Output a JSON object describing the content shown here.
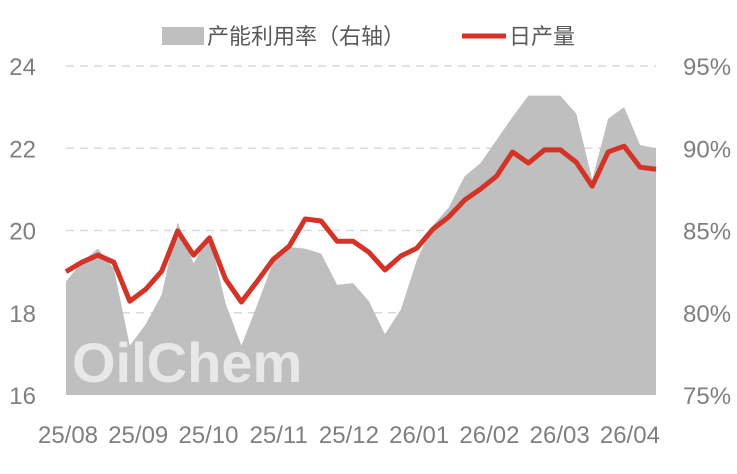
{
  "chart_data": {
    "type": "line+area",
    "legend": {
      "placement": "top",
      "entries": [
        "产能利用率（右轴）",
        "日产量"
      ]
    },
    "x_tick_labels": [
      "25/08",
      "25/09",
      "25/10",
      "25/11",
      "25/12",
      "26/01",
      "26/02",
      "26/03",
      "26/04"
    ],
    "left_axis": {
      "range": [
        16,
        24
      ],
      "ticks": [
        16,
        18,
        20,
        22,
        24
      ],
      "tick_labels": [
        "16",
        "18",
        "20",
        "22",
        "24"
      ]
    },
    "right_axis": {
      "range": [
        75,
        95
      ],
      "ticks": [
        75,
        80,
        85,
        90,
        95
      ],
      "tick_labels": [
        "75%",
        "80%",
        "85%",
        "90%",
        "95%"
      ]
    },
    "grid": "horizontal dashed",
    "series": [
      {
        "name": "产能利用率（右轴）",
        "type": "area",
        "axis": "right",
        "color": "#bfbfbf",
        "values": [
          81.9,
          83.1,
          83.9,
          82.7,
          78.0,
          79.3,
          81.1,
          85.5,
          83.0,
          84.7,
          80.6,
          78.0,
          80.5,
          83.1,
          84.0,
          83.9,
          83.6,
          81.7,
          81.8,
          80.7,
          78.7,
          80.2,
          83.2,
          85.3,
          86.4,
          88.3,
          89.1,
          90.5,
          91.9,
          93.2,
          93.2,
          93.2,
          92.1,
          88.1,
          91.8,
          92.5,
          90.2,
          90.0
        ]
      },
      {
        "name": "日产量",
        "type": "line",
        "axis": "left",
        "color": "#d33427",
        "values": [
          19.0,
          19.23,
          19.4,
          19.23,
          18.28,
          18.57,
          19.01,
          19.99,
          19.4,
          19.82,
          18.82,
          18.26,
          18.77,
          19.3,
          19.62,
          20.28,
          20.23,
          19.74,
          19.74,
          19.47,
          19.04,
          19.38,
          19.57,
          20.03,
          20.33,
          20.74,
          21.01,
          21.32,
          21.91,
          21.64,
          21.96,
          21.96,
          21.66,
          21.08,
          21.91,
          22.05,
          21.54,
          21.49
        ]
      }
    ],
    "watermark": "OilChem"
  }
}
